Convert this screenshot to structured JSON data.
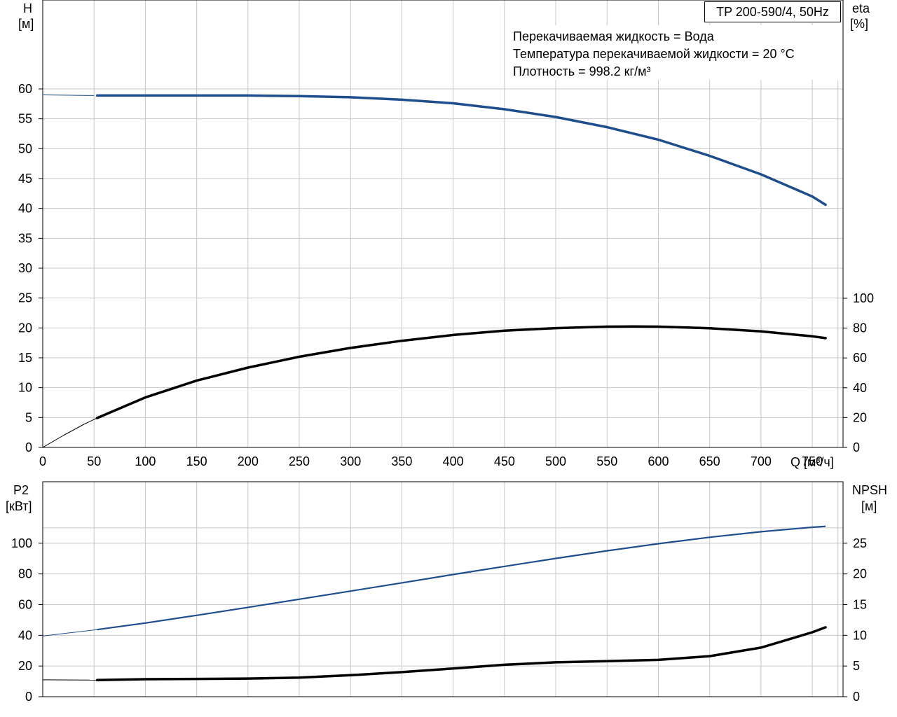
{
  "chart_data": [
    {
      "type": "line",
      "title": "TP 200-590/4, 50Hz",
      "notes": [
        "Перекачиваемая жидкость = Вода",
        "Температура перекачиваемой жидкости = 20 °C",
        "Плотность = 998.2 кг/м³"
      ],
      "xlabel": "Q [м³/ч]",
      "ylabel_left": "H",
      "ylabel_left_unit": "[м]",
      "ylabel_right": "eta",
      "ylabel_right_unit": "[%]",
      "xlim": [
        0,
        780
      ],
      "x_ticks": [
        0,
        50,
        100,
        150,
        200,
        250,
        300,
        350,
        400,
        450,
        500,
        550,
        600,
        650,
        700,
        750
      ],
      "ylim_left": [
        0,
        60
      ],
      "y_ticks_left": [
        0,
        5,
        10,
        15,
        20,
        25,
        30,
        35,
        40,
        45,
        50,
        55,
        60
      ],
      "ylim_right": [
        0,
        100
      ],
      "y_ticks_right": [
        0,
        20,
        40,
        60,
        80,
        100
      ],
      "grid": true,
      "series": [
        {
          "axis": "left",
          "color": "#1f4e8c",
          "extended_x": [
            0,
            50
          ],
          "extended_y": [
            59.0,
            58.9
          ],
          "x": [
            53,
            100,
            150,
            200,
            250,
            300,
            350,
            400,
            450,
            500,
            550,
            600,
            650,
            700,
            750,
            763
          ],
          "y": [
            58.9,
            58.9,
            58.9,
            58.9,
            58.8,
            58.6,
            58.2,
            57.6,
            56.6,
            55.3,
            53.6,
            51.5,
            48.8,
            45.7,
            42.0,
            40.6
          ]
        },
        {
          "axis": "right",
          "color": "#000000",
          "extended_x": [
            0,
            20,
            40,
            53
          ],
          "extended_y": [
            0,
            8.0,
            15.5,
            19.7
          ],
          "x": [
            53,
            100,
            150,
            200,
            250,
            300,
            350,
            400,
            450,
            500,
            550,
            575,
            600,
            650,
            700,
            750,
            763
          ],
          "y": [
            19.7,
            33.5,
            44.8,
            53.5,
            60.8,
            66.7,
            71.5,
            75.4,
            78.3,
            80.0,
            81.0,
            81.1,
            81.0,
            79.9,
            77.8,
            74.5,
            73.3
          ]
        }
      ]
    },
    {
      "type": "line",
      "ylabel_left": "P2",
      "ylabel_left_unit": "[кВт]",
      "ylabel_right": "NPSH",
      "ylabel_right_unit": "[м]",
      "xlim": [
        0,
        780
      ],
      "ylim_left": [
        0,
        120
      ],
      "y_ticks_left": [
        0,
        20,
        40,
        60,
        80,
        100
      ],
      "ylim_right": [
        0,
        30
      ],
      "y_ticks_right": [
        0,
        5,
        10,
        15,
        20,
        25
      ],
      "grid": true,
      "series": [
        {
          "axis": "left",
          "color": "#1f4e8c",
          "extended_x": [
            0,
            25,
            53
          ],
          "extended_y": [
            39.5,
            41.5,
            43.7
          ],
          "x": [
            53,
            100,
            150,
            200,
            250,
            300,
            350,
            400,
            450,
            500,
            550,
            600,
            650,
            700,
            750,
            763
          ],
          "y": [
            43.7,
            48.0,
            53.0,
            58.2,
            63.5,
            68.8,
            74.2,
            79.6,
            84.9,
            90.1,
            95.1,
            99.7,
            103.9,
            107.5,
            110.4,
            111.0
          ]
        },
        {
          "axis": "right",
          "color": "#000000",
          "extended_x": [
            0,
            53
          ],
          "extended_y": [
            2.75,
            2.7
          ],
          "x": [
            53,
            100,
            150,
            200,
            250,
            300,
            350,
            400,
            450,
            500,
            550,
            600,
            650,
            700,
            750,
            763
          ],
          "y": [
            2.7,
            2.85,
            2.9,
            2.95,
            3.1,
            3.5,
            4.0,
            4.6,
            5.2,
            5.6,
            5.8,
            6.0,
            6.6,
            8.0,
            10.5,
            11.3
          ]
        }
      ]
    }
  ]
}
